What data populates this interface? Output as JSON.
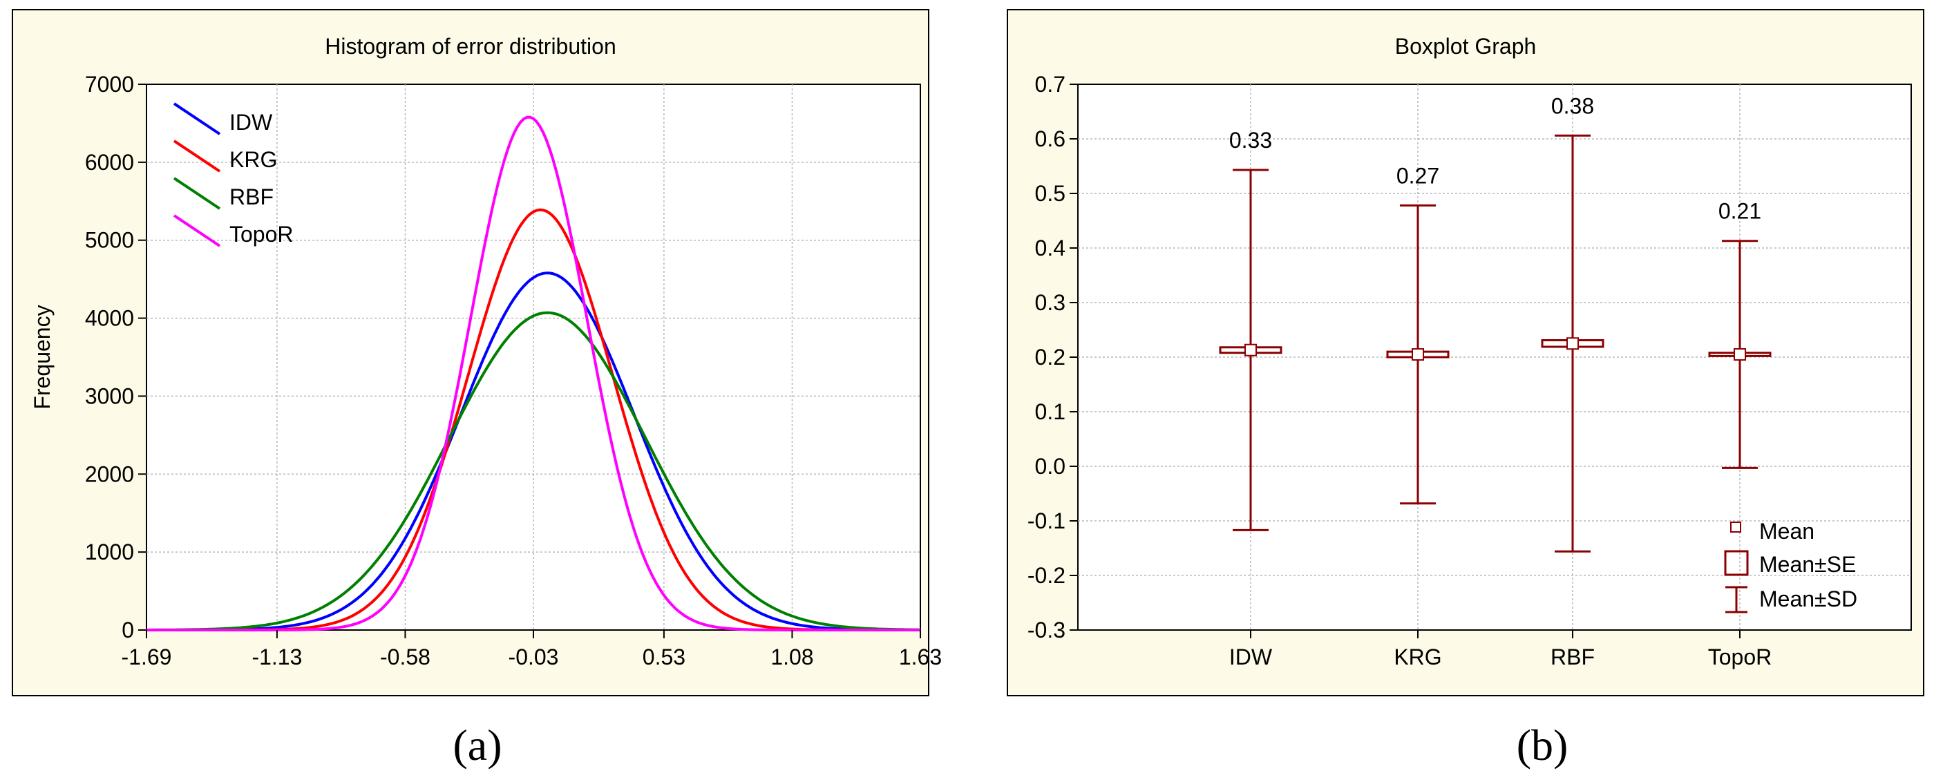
{
  "chart_data": [
    {
      "type": "line",
      "title": "Histogram of error distribution",
      "xlabel": "",
      "ylabel": "Frequency",
      "xlim": [
        -1.69,
        1.63
      ],
      "ylim": [
        0,
        7000
      ],
      "x_ticks": [
        "-1.69",
        "-1.13",
        "-0.58",
        "-0.03",
        "0.53",
        "1.08",
        "1.63"
      ],
      "y_ticks": [
        "0",
        "1000",
        "2000",
        "3000",
        "4000",
        "5000",
        "6000",
        "7000"
      ],
      "series": [
        {
          "name": "IDW",
          "color": "#0000ff",
          "mean": 0.03,
          "sd": 0.37,
          "peak": 4580
        },
        {
          "name": "KRG",
          "color": "#ff0000",
          "mean": 0.0,
          "sd": 0.31,
          "peak": 5390
        },
        {
          "name": "RBF",
          "color": "#008000",
          "mean": 0.03,
          "sd": 0.42,
          "peak": 4070
        },
        {
          "name": "TopoR",
          "color": "#ff00ff",
          "mean": -0.05,
          "sd": 0.25,
          "peak": 6580
        }
      ],
      "legend_position": "top-left",
      "panel_label": "(a)"
    },
    {
      "type": "box",
      "title": "Boxplot Graph",
      "xlabel": "",
      "ylabel": "",
      "ylim": [
        -0.3,
        0.7
      ],
      "y_ticks": [
        "-0.3",
        "-0.2",
        "-0.1",
        "0.0",
        "0.1",
        "0.2",
        "0.3",
        "0.4",
        "0.5",
        "0.6",
        "0.7"
      ],
      "categories": [
        "IDW",
        "KRG",
        "RBF",
        "TopoR"
      ],
      "mean": [
        0.213,
        0.205,
        0.225,
        0.205
      ],
      "se": [
        0.005,
        0.005,
        0.006,
        0.003
      ],
      "sd": [
        0.33,
        0.273,
        0.381,
        0.208
      ],
      "sd_labels": [
        "0.33",
        "0.27",
        "0.38",
        "0.21"
      ],
      "color": "#8b0000",
      "legend": [
        "Mean",
        "Mean±SE",
        "Mean±SD"
      ],
      "legend_position": "bottom-right",
      "panel_label": "(b)"
    }
  ]
}
